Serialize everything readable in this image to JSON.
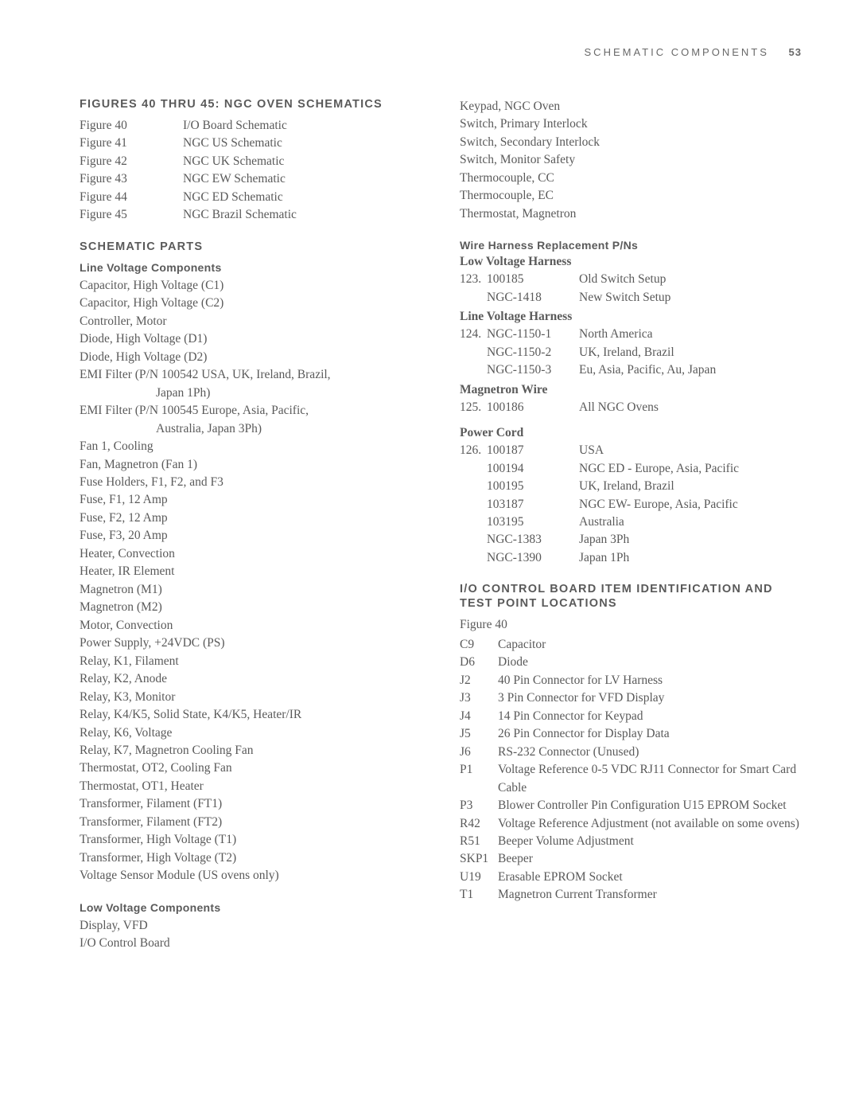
{
  "header": {
    "section": "SCHEMATIC COMPONENTS",
    "page": "53"
  },
  "figsTitle": "FIGURES 40 THRU 45: NGC OVEN SCHEMATICS",
  "figs": [
    {
      "l": "Figure 40",
      "r": "I/O Board Schematic"
    },
    {
      "l": "Figure 41",
      "r": "NGC US Schematic"
    },
    {
      "l": "Figure 42",
      "r": "NGC UK Schematic"
    },
    {
      "l": "Figure 43",
      "r": "NGC EW Schematic"
    },
    {
      "l": "Figure 44",
      "r": "NGC ED Schematic"
    },
    {
      "l": "Figure 45",
      "r": "NGC Brazil Schematic"
    }
  ],
  "schematicParts": "SCHEMATIC PARTS",
  "lineVoltTitle": "Line Voltage Components",
  "lineVolt": [
    "Capacitor, High Voltage (C1)",
    "Capacitor, High Voltage (C2)",
    "Controller, Motor",
    "Diode, High Voltage (D1)",
    "Diode, High Voltage (D2)",
    "EMI Filter (P/N 100542 USA, UK, Ireland, Brazil,",
    "EMI Filter (P/N 100545 Europe, Asia, Pacific,",
    "Fan 1, Cooling",
    "Fan, Magnetron (Fan 1)",
    "Fuse Holders, F1, F2, and F3",
    "Fuse, F1, 12 Amp",
    "Fuse, F2, 12 Amp",
    "Fuse, F3, 20 Amp",
    "Heater, Convection",
    "Heater, IR Element",
    "Magnetron (M1)",
    "Magnetron (M2)",
    "Motor, Convection",
    "Power Supply, +24VDC (PS)",
    "Relay, K1, Filament",
    "Relay, K2, Anode",
    "Relay, K3, Monitor",
    "Relay, K4/K5, Solid State, K4/K5, Heater/IR",
    "Relay, K6, Voltage",
    "Relay, K7, Magnetron Cooling Fan",
    "Thermostat, OT2, Cooling Fan",
    "Thermostat, OT1, Heater",
    "Transformer, Filament (FT1)",
    "Transformer, Filament (FT2)",
    "Transformer, High Voltage (T1)",
    "Transformer, High Voltage (T2)",
    "Voltage Sensor Module (US ovens only)"
  ],
  "emiHang1": "Japan 1Ph)",
  "emiHang2": "Australia, Japan 3Ph)",
  "lowVoltTitle": "Low Voltage Components",
  "lowVolt": [
    "Display, VFD",
    "I/O Control Board"
  ],
  "col2Top": [
    "Keypad, NGC Oven",
    "Switch, Primary Interlock",
    "Switch, Secondary Interlock",
    "Switch, Monitor Safety",
    "Thermocouple, CC",
    "Thermocouple, EC",
    "Thermostat, Magnetron"
  ],
  "wireTitle": "Wire Harness Replacement P/Ns",
  "lvHarness": "Low Voltage Harness",
  "lvRows": [
    {
      "a": "123.",
      "b": "100185",
      "c": "Old Switch Setup"
    },
    {
      "a": "",
      "b": "NGC-1418",
      "c": "New Switch Setup"
    }
  ],
  "lineHarness": "Line Voltage Harness",
  "lineRows": [
    {
      "a": "124.",
      "b": "NGC-1150-1",
      "c": "North America"
    },
    {
      "a": "",
      "b": "NGC-1150-2",
      "c": "UK, Ireland, Brazil"
    },
    {
      "a": "",
      "b": "NGC-1150-3",
      "c": "Eu, Asia, Pacific, Au, Japan"
    }
  ],
  "magWire": "Magnetron Wire",
  "magRows": [
    {
      "a": "125.",
      "b": "100186",
      "c": "All NGC Ovens"
    }
  ],
  "powerCord": "Power Cord",
  "pcRows": [
    {
      "a": "126.",
      "b": "100187",
      "c": "USA"
    },
    {
      "a": "",
      "b": "100194",
      "c": "NGC ED - Europe, Asia, Pacific"
    },
    {
      "a": "",
      "b": "100195",
      "c": "UK, Ireland, Brazil"
    },
    {
      "a": "",
      "b": "103187",
      "c": "NGC EW- Europe, Asia, Pacific"
    },
    {
      "a": "",
      "b": "103195",
      "c": "Australia"
    },
    {
      "a": "",
      "b": "NGC-1383",
      "c": "Japan 3Ph"
    },
    {
      "a": "",
      "b": "NGC-1390",
      "c": "Japan 1Ph"
    }
  ],
  "ioTitle1": "I/O CONTROL BOARD ITEM IDENTIFICATION AND",
  "ioTitle2": "TEST POINT LOCATIONS",
  "fig40": "Figure 40",
  "ioRows": [
    {
      "l": "C9",
      "r": "Capacitor"
    },
    {
      "l": "D6",
      "r": "Diode"
    },
    {
      "l": "J2",
      "r": "40 Pin Connector for LV Harness"
    },
    {
      "l": "J3",
      "r": "3 Pin Connector for VFD Display"
    },
    {
      "l": "J4",
      "r": "14 Pin Connector for Keypad"
    },
    {
      "l": "J5",
      "r": "26 Pin Connector for Display Data"
    },
    {
      "l": "J6",
      "r": "RS-232 Connector (Unused)"
    },
    {
      "l": "P1",
      "r": "Voltage Reference 0-5 VDC RJ11 Connector for Smart Card Cable"
    },
    {
      "l": "P3",
      "r": "Blower Controller Pin Configuration U15 EPROM Socket"
    },
    {
      "l": "R42",
      "r": "Voltage Reference Adjustment (not available on some ovens)"
    },
    {
      "l": "R51",
      "r": "Beeper Volume Adjustment"
    },
    {
      "l": "SKP1",
      "r": "Beeper"
    },
    {
      "l": "U19",
      "r": "Erasable EPROM Socket"
    },
    {
      "l": "T1",
      "r": "Magnetron Current Transformer"
    }
  ]
}
